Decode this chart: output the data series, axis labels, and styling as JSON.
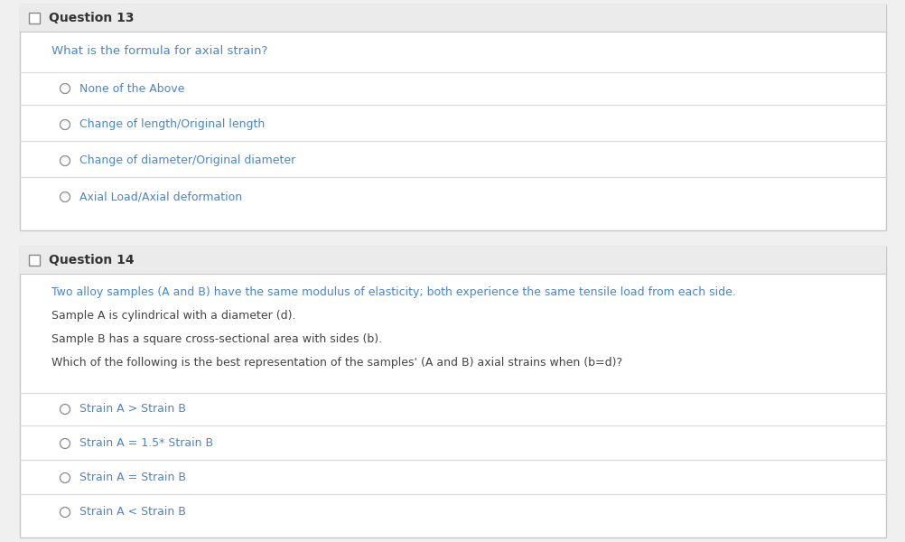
{
  "bg_color": "#f0f0f0",
  "white": "#ffffff",
  "border_color": "#c8c8c8",
  "header_bg": "#ebebeb",
  "header_text_color": "#333333",
  "question_text_color": "#4a86c8",
  "option_text_color": "#4a86c8",
  "body_text_color": "#444444",
  "radio_color": "#888888",
  "separator_color": "#d8d8d8",
  "q13_header": "Question 13",
  "q13_question": "What is the formula for axial strain?",
  "q13_options": [
    "None of the Above",
    "Change of length/Original length",
    "Change of diameter/Original diameter",
    "Axial Load/Axial deformation"
  ],
  "q14_header": "Question 14",
  "q14_line1": "Two alloy samples (A and B) have the same modulus of elasticity; both experience the same tensile load from each side.",
  "q14_line2": "Sample A is cylindrical with a diameter (d).",
  "q14_line3": "Sample B has a square cross-sectional area with sides (b).",
  "q14_line4": "Which of the following is the best representation of the samples' (A and B) axial strains when (b=d)?",
  "q14_options": [
    "Strain A > Strain B",
    "Strain A = 1.5* Strain B",
    "Strain A = Strain B",
    "Strain A < Strain B"
  ],
  "fig_width": 10.03,
  "fig_height": 6.0,
  "dpi": 100
}
